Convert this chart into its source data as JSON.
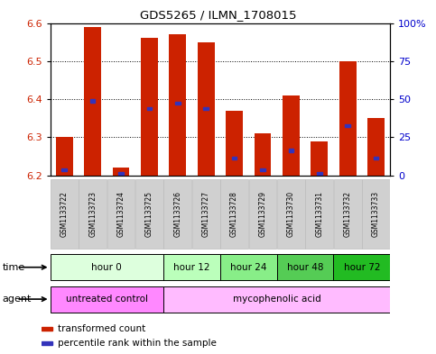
{
  "title": "GDS5265 / ILMN_1708015",
  "samples": [
    "GSM1133722",
    "GSM1133723",
    "GSM1133724",
    "GSM1133725",
    "GSM1133726",
    "GSM1133727",
    "GSM1133728",
    "GSM1133729",
    "GSM1133730",
    "GSM1133731",
    "GSM1133732",
    "GSM1133733"
  ],
  "bar_bottoms": [
    6.2,
    6.2,
    6.2,
    6.2,
    6.2,
    6.2,
    6.2,
    6.2,
    6.2,
    6.2,
    6.2,
    6.2
  ],
  "bar_tops": [
    6.3,
    6.59,
    6.22,
    6.56,
    6.57,
    6.55,
    6.37,
    6.31,
    6.41,
    6.29,
    6.5,
    6.35
  ],
  "blue_positions": [
    6.215,
    6.395,
    6.205,
    6.375,
    6.39,
    6.375,
    6.245,
    6.215,
    6.265,
    6.205,
    6.33,
    6.245
  ],
  "ylim_left": [
    6.2,
    6.6
  ],
  "ylim_right": [
    0,
    100
  ],
  "yticks_left": [
    6.2,
    6.3,
    6.4,
    6.5,
    6.6
  ],
  "yticks_right": [
    0,
    25,
    50,
    75,
    100
  ],
  "ytick_labels_right": [
    "0",
    "25",
    "50",
    "75",
    "100%"
  ],
  "bar_color": "#cc2200",
  "blue_color": "#3333bb",
  "time_groups": [
    {
      "label": "hour 0",
      "start": 0,
      "end": 3,
      "color": "#ddffdd"
    },
    {
      "label": "hour 12",
      "start": 4,
      "end": 5,
      "color": "#bbffbb"
    },
    {
      "label": "hour 24",
      "start": 6,
      "end": 7,
      "color": "#88ee88"
    },
    {
      "label": "hour 48",
      "start": 8,
      "end": 9,
      "color": "#55cc55"
    },
    {
      "label": "hour 72",
      "start": 10,
      "end": 11,
      "color": "#22bb22"
    }
  ],
  "agent_groups": [
    {
      "label": "untreated control",
      "start": 0,
      "end": 3,
      "color": "#ff88ff"
    },
    {
      "label": "mycophenolic acid",
      "start": 4,
      "end": 11,
      "color": "#ffbbff"
    }
  ],
  "legend_red": "transformed count",
  "legend_blue": "percentile rank within the sample",
  "bg_color": "#ffffff",
  "plot_bg": "#ffffff",
  "time_label": "time",
  "agent_label": "agent"
}
